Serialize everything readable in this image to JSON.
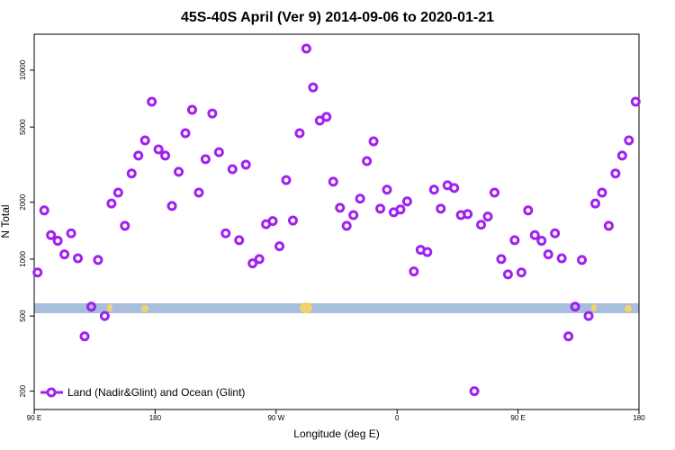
{
  "chart_data": {
    "type": "scatter",
    "title": "45S-40S April (Ver 9)   2014-09-06 to 2020-01-21",
    "x_label": "Longitude (deg E)",
    "y_label": "N Total",
    "xlim": [
      90,
      540
    ],
    "xticks": [
      {
        "value": 90,
        "label": "90 E"
      },
      {
        "value": 180,
        "label": "180"
      },
      {
        "value": 270,
        "label": "90 W"
      },
      {
        "value": 360,
        "label": "0"
      },
      {
        "value": 450,
        "label": "90 E"
      },
      {
        "value": 540,
        "label": "180"
      }
    ],
    "ylim": [
      160,
      15500
    ],
    "yticks": [
      200,
      500,
      1000,
      2000,
      5000,
      10000
    ],
    "y_log": true,
    "grid": false,
    "legend": "bottom-left",
    "series": [
      {
        "name": "Land (Nadir&Glint) and Ocean (Glint)",
        "color": "#a020f0",
        "x": [
          92.5,
          97.5,
          102.5,
          107.5,
          112.5,
          117.5,
          122.5,
          127.5,
          132.5,
          137.5,
          142.5,
          147.5,
          152.5,
          157.5,
          162.5,
          167.5,
          172.5,
          177.5,
          182.5,
          187.5,
          192.5,
          197.5,
          202.5,
          207.5,
          212.5,
          217.5,
          222.5,
          227.5,
          232.5,
          237.5,
          242.5,
          247.5,
          252.5,
          257.5,
          262.5,
          267.5,
          272.5,
          277.5,
          282.5,
          287.5,
          292.5,
          297.5,
          302.5,
          307.5,
          312.5,
          317.5,
          322.5,
          327.5,
          332.5,
          337.5,
          342.5,
          347.5,
          352.5,
          357.5,
          362.5,
          367.5,
          372.5,
          377.5,
          382.5,
          387.5,
          392.5,
          397.5,
          402.5,
          407.5,
          412.5,
          417.5,
          422.5,
          427.5,
          432.5,
          437.5,
          442.5,
          447.5,
          452.5,
          457.5,
          462.5,
          467.5,
          472.5,
          477.5,
          482.5,
          487.5,
          492.5,
          497.5,
          502.5,
          507.5,
          512.5,
          517.5,
          522.5,
          527.5,
          532.5,
          537.5
        ],
        "values": [
          850,
          1810,
          1340,
          1250,
          1060,
          1370,
          1010,
          390,
          560,
          990,
          500,
          1970,
          2250,
          1500,
          2840,
          3530,
          4250,
          6810,
          3810,
          3530,
          1910,
          2900,
          4640,
          6170,
          2250,
          3380,
          5900,
          3680,
          1370,
          2990,
          1260,
          3160,
          950,
          1000,
          1530,
          1590,
          1170,
          2620,
          1600,
          4640,
          13000,
          8100,
          5410,
          5660,
          2570,
          1870,
          1500,
          1710,
          2090,
          3300,
          4200,
          1850,
          2330,
          1770,
          1830,
          2020,
          860,
          1120,
          1090,
          2330,
          1850,
          2460,
          2380,
          1710,
          1730,
          200,
          1520,
          1680,
          2250,
          1000,
          830,
          1260,
          850,
          1810,
          1340,
          1250,
          1060,
          1370,
          1010,
          390,
          560,
          990,
          500,
          1970,
          2250,
          1500,
          2840,
          3530,
          4250,
          6810
        ]
      }
    ]
  }
}
